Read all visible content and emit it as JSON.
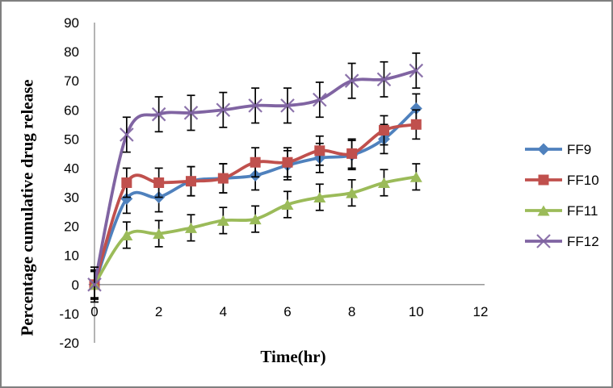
{
  "figure": {
    "background": "#ffffff",
    "border_color": "#7f7f7f"
  },
  "chart_data": {
    "type": "line",
    "title": "",
    "xlabel": "Time(hr)",
    "ylabel": "Percentage cumulative drug release",
    "xlim": [
      0,
      12
    ],
    "ylim": [
      -20,
      90
    ],
    "x_ticks": [
      0,
      2,
      4,
      6,
      8,
      10,
      12
    ],
    "y_ticks": [
      -20,
      -10,
      0,
      10,
      20,
      30,
      40,
      50,
      60,
      70,
      80,
      90
    ],
    "grid": false,
    "legend_position": "right",
    "axis_color": "#8c8c8c",
    "error_bar_color": "#000000",
    "smooth_lines": true,
    "x": [
      0,
      1,
      2,
      3,
      4,
      5,
      6,
      7,
      8,
      9,
      10
    ],
    "series": [
      {
        "name": "FF9",
        "color": "#4F81BD",
        "marker": "diamond",
        "error": 5,
        "values": [
          0,
          29.5,
          30,
          35.5,
          36.5,
          37.5,
          41,
          43.5,
          44.5,
          50,
          60.5
        ]
      },
      {
        "name": "FF10",
        "color": "#C0504D",
        "marker": "square",
        "error": 5,
        "values": [
          0,
          35,
          35,
          35.5,
          36.5,
          42,
          42,
          46,
          45,
          53,
          55
        ]
      },
      {
        "name": "FF11",
        "color": "#9BBB59",
        "marker": "triangle",
        "error": 4.5,
        "values": [
          0,
          17,
          17.5,
          19.5,
          22,
          22.5,
          27.5,
          30,
          31.5,
          35,
          37
        ]
      },
      {
        "name": "FF12",
        "color": "#8064A2",
        "marker": "x",
        "error": 6,
        "values": [
          0,
          51.5,
          58.5,
          59,
          60,
          61.5,
          61.5,
          63.5,
          70,
          70.5,
          73.5
        ]
      }
    ]
  }
}
